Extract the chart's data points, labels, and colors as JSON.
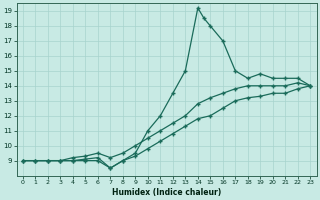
{
  "xlabel": "Humidex (Indice chaleur)",
  "bg_color": "#c8eae4",
  "grid_color": "#a8d4ce",
  "line_color": "#1a6b5a",
  "xlim": [
    -0.5,
    23.5
  ],
  "ylim": [
    8.0,
    19.5
  ],
  "xticks": [
    0,
    1,
    2,
    3,
    4,
    5,
    6,
    7,
    8,
    9,
    10,
    11,
    12,
    13,
    14,
    15,
    16,
    17,
    18,
    19,
    20,
    21,
    22,
    23
  ],
  "yticks": [
    9,
    10,
    11,
    12,
    13,
    14,
    15,
    16,
    17,
    18,
    19
  ],
  "line1_x": [
    0,
    1,
    2,
    3,
    4,
    5,
    6,
    7,
    8,
    9,
    10,
    11,
    12,
    13,
    14,
    14.5,
    15,
    16,
    17,
    18,
    19,
    20,
    21,
    22,
    23
  ],
  "line1_y": [
    9,
    9,
    9,
    9,
    9,
    9,
    9,
    8.5,
    9,
    9.5,
    11,
    12,
    13.5,
    15,
    19.2,
    18.5,
    18,
    17,
    15,
    14.5,
    14.8,
    14.5,
    14.5,
    14.5,
    14
  ],
  "line2_x": [
    0,
    23
  ],
  "line2_y": [
    9,
    14
  ],
  "line3_x": [
    0,
    23
  ],
  "line3_y": [
    9,
    14
  ],
  "line2_full_x": [
    0,
    1,
    2,
    3,
    4,
    5,
    6,
    7,
    8,
    9,
    10,
    11,
    12,
    13,
    14,
    15,
    16,
    17,
    18,
    19,
    20,
    21,
    22,
    23
  ],
  "line2_full_y": [
    9,
    9,
    9,
    9,
    9.2,
    9.3,
    9.5,
    9.2,
    9.5,
    10,
    10.5,
    11,
    11.5,
    12,
    12.8,
    13.2,
    13.5,
    13.8,
    14,
    14,
    14,
    14,
    14.2,
    14
  ],
  "line3_full_x": [
    0,
    1,
    2,
    3,
    4,
    5,
    6,
    7,
    8,
    9,
    10,
    11,
    12,
    13,
    14,
    15,
    16,
    17,
    18,
    19,
    20,
    21,
    22,
    23
  ],
  "line3_full_y": [
    9,
    9,
    9,
    9,
    9,
    9.1,
    9.2,
    8.5,
    9,
    9.3,
    9.8,
    10.3,
    10.8,
    11.3,
    11.8,
    12.0,
    12.5,
    13.0,
    13.2,
    13.3,
    13.5,
    13.5,
    13.8,
    14
  ]
}
